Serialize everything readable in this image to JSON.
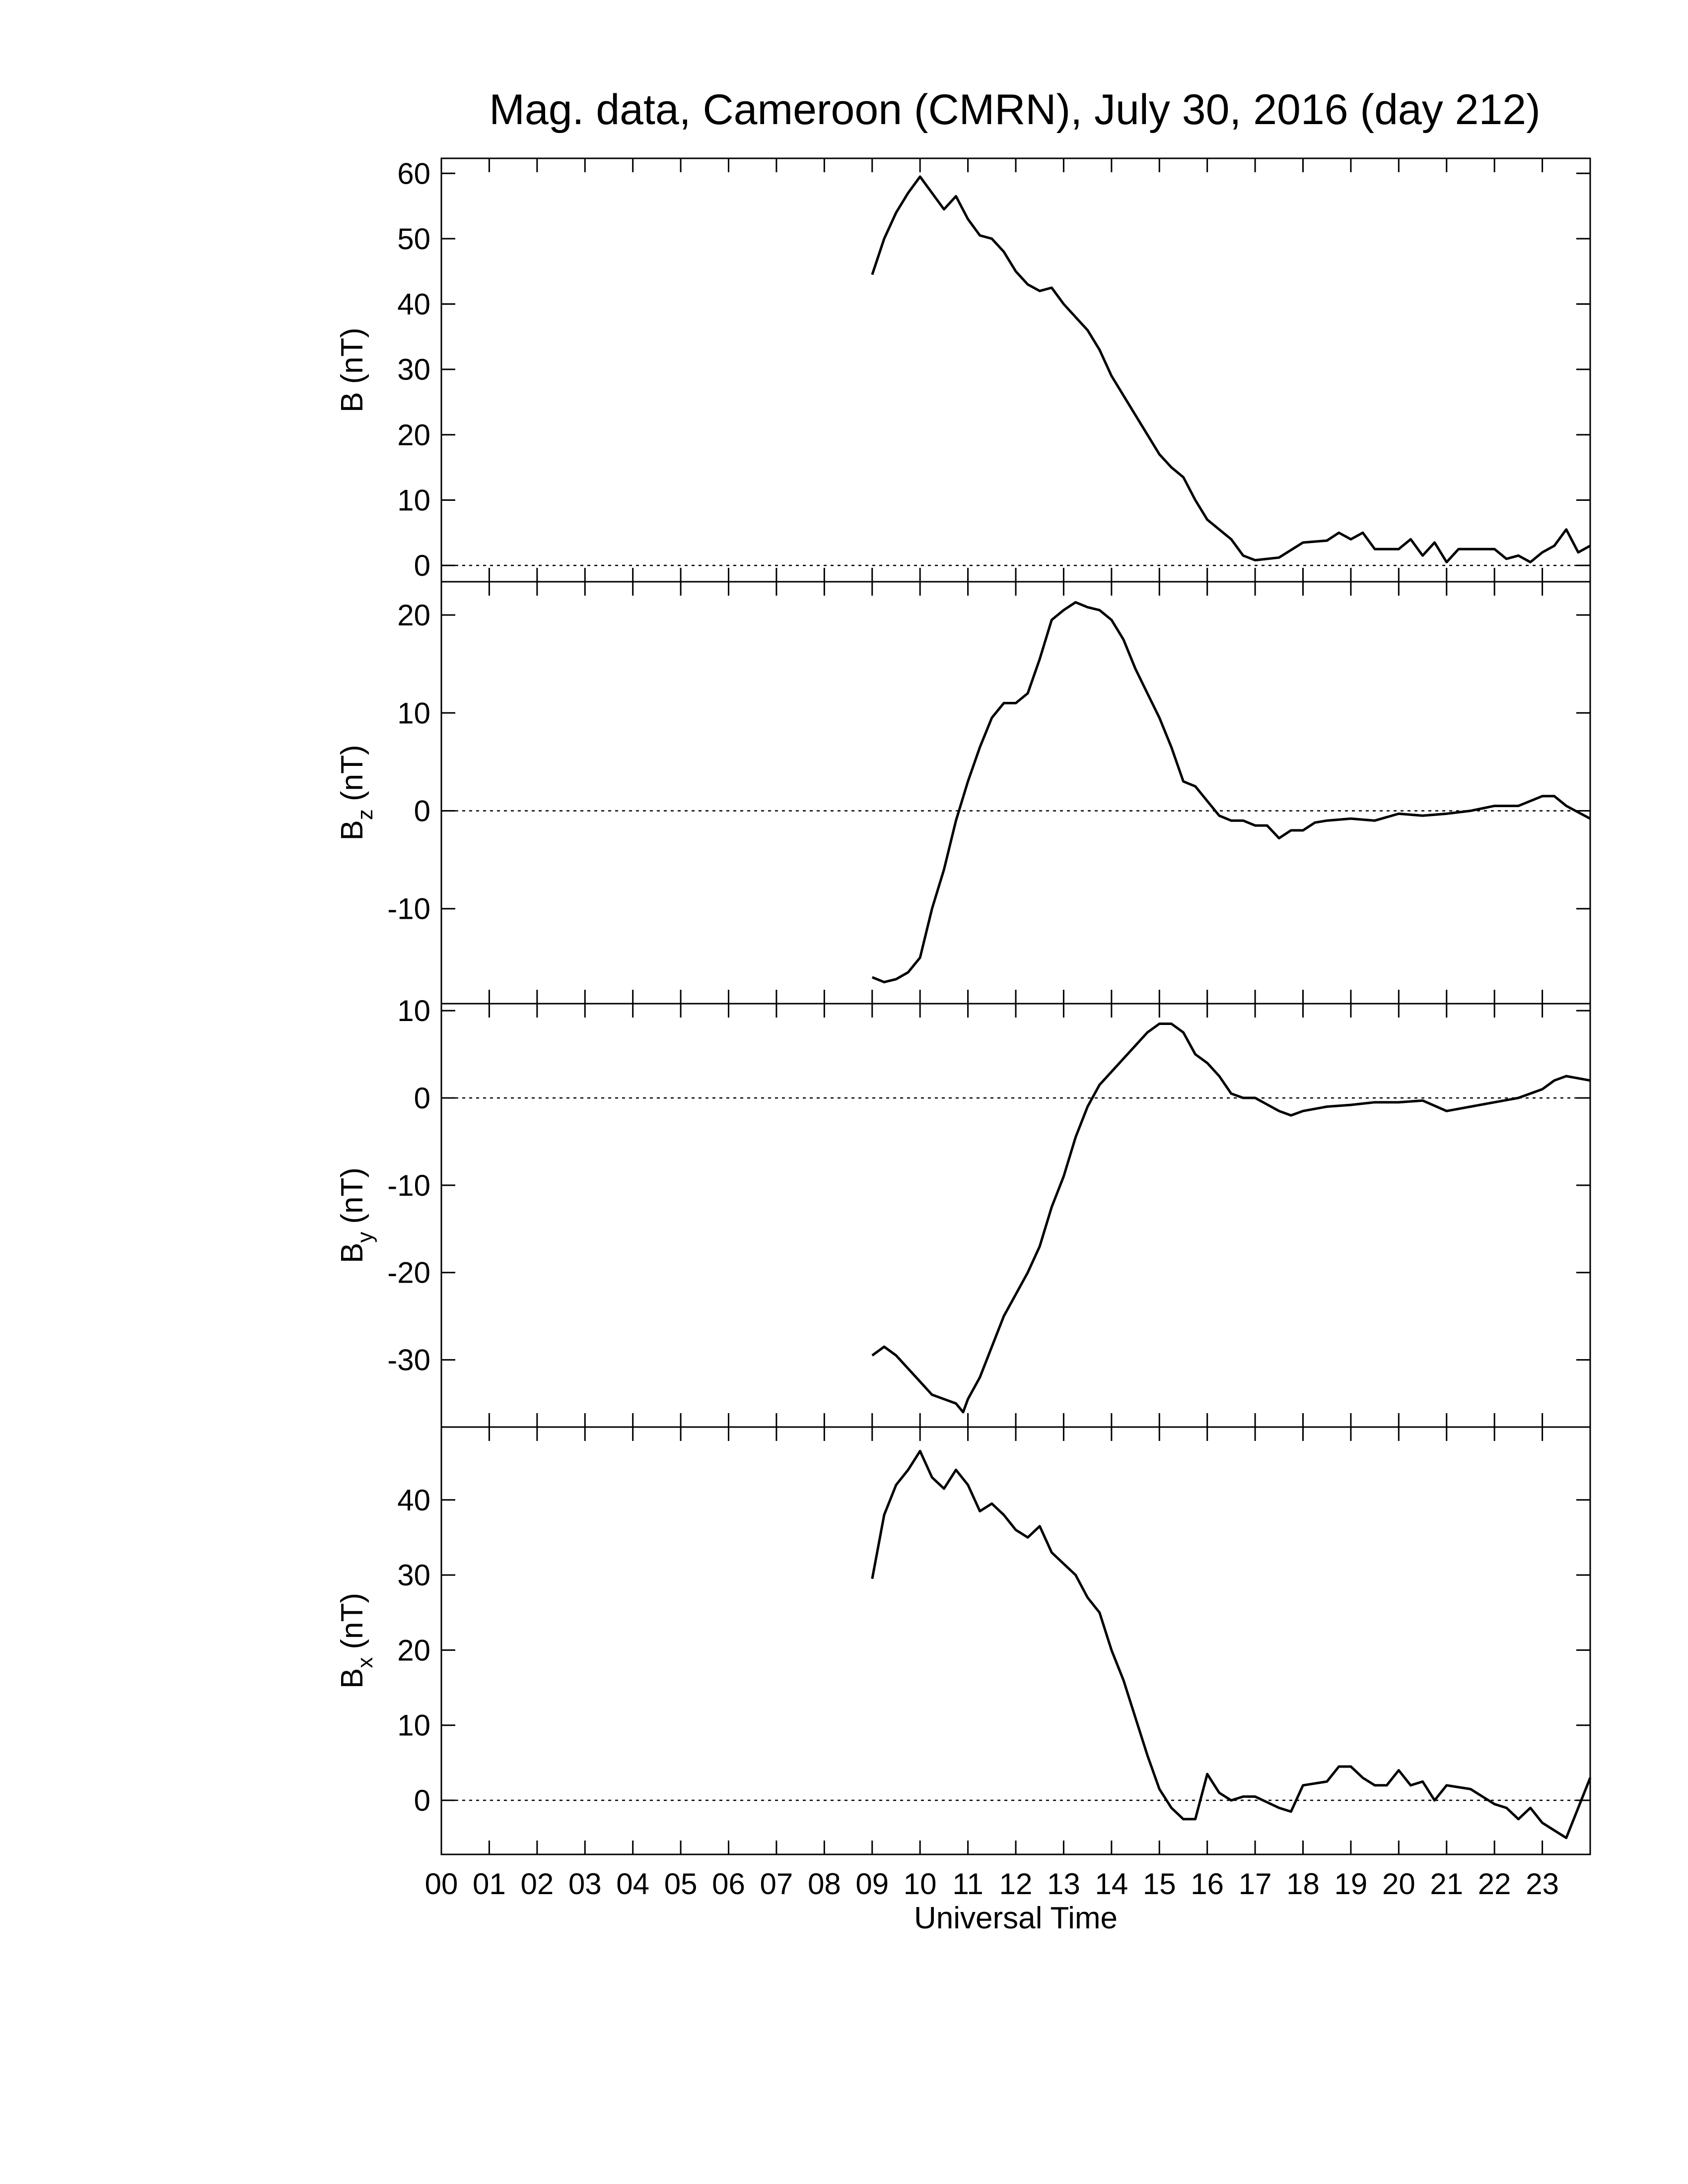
{
  "chart_data": [
    {
      "type": "line",
      "title": "Mag. data, Cameroon (CMRN), July 30, 2016 (day 212)",
      "ylabel": "B",
      "ylabel_unit": "(nT)",
      "color": "#000000",
      "zero_line": true,
      "xlim": [
        0,
        24
      ],
      "ylim": [
        -2.5,
        62.3
      ],
      "yticks": [
        0,
        10,
        20,
        30,
        40,
        50,
        60
      ],
      "x": [
        9.0,
        9.25,
        9.5,
        9.75,
        10.0,
        10.25,
        10.5,
        10.75,
        11.0,
        11.25,
        11.5,
        11.75,
        12.0,
        12.25,
        12.5,
        12.75,
        13.0,
        13.25,
        13.5,
        13.75,
        14.0,
        14.5,
        15.0,
        15.25,
        15.5,
        15.75,
        16.0,
        16.5,
        16.75,
        17.0,
        17.5,
        18.0,
        18.5,
        18.75,
        19.0,
        19.25,
        19.5,
        20.0,
        20.25,
        20.5,
        20.75,
        21.0,
        21.25,
        21.5,
        22.0,
        22.25,
        22.5,
        22.75,
        23.0,
        23.25,
        23.5,
        23.75,
        24.0
      ],
      "values": [
        44.5,
        50,
        54,
        57,
        59.5,
        57,
        54.5,
        56.5,
        53,
        50.5,
        50,
        48,
        45,
        43,
        42,
        42.5,
        40,
        38,
        36,
        33,
        29,
        23,
        17,
        15,
        13.5,
        10,
        7,
        4,
        1.5,
        0.8,
        1.2,
        3.5,
        3.8,
        5,
        4,
        5,
        2.5,
        2.5,
        4,
        1.5,
        3.5,
        0.5,
        2.5,
        2.5,
        2.5,
        1,
        1.5,
        0.5,
        2,
        3,
        5.5,
        2,
        3
      ]
    },
    {
      "type": "line",
      "ylabel": "B",
      "ylabel_sub": "z",
      "ylabel_unit": "(nT)",
      "color": "#000000",
      "zero_line": true,
      "xlim": [
        0,
        24
      ],
      "ylim": [
        -19.7,
        23.4
      ],
      "yticks": [
        -10,
        0,
        10,
        20
      ],
      "x": [
        9.0,
        9.25,
        9.5,
        9.75,
        10.0,
        10.25,
        10.5,
        10.75,
        11.0,
        11.25,
        11.5,
        11.75,
        12.0,
        12.25,
        12.5,
        12.75,
        13.0,
        13.25,
        13.5,
        13.75,
        14.0,
        14.25,
        14.5,
        14.75,
        15.0,
        15.25,
        15.5,
        15.75,
        16.0,
        16.25,
        16.5,
        16.75,
        17.0,
        17.25,
        17.5,
        17.75,
        18.0,
        18.25,
        18.5,
        19.0,
        19.5,
        20.0,
        20.5,
        21.0,
        21.5,
        22.0,
        22.5,
        23.0,
        23.25,
        23.5,
        24.0
      ],
      "values": [
        -17,
        -17.5,
        -17.2,
        -16.5,
        -15,
        -10,
        -6,
        -1,
        3,
        6.5,
        9.5,
        11,
        11,
        12,
        15.5,
        19.5,
        20.5,
        21.3,
        20.8,
        20.5,
        19.5,
        17.5,
        14.5,
        12,
        9.5,
        6.5,
        3,
        2.5,
        1,
        -0.5,
        -1,
        -1,
        -1.5,
        -1.5,
        -2.8,
        -2,
        -2,
        -1.2,
        -1,
        -0.8,
        -1,
        -0.3,
        -0.5,
        -0.3,
        0,
        0.5,
        0.5,
        1.5,
        1.5,
        0.5,
        -0.8
      ]
    },
    {
      "type": "line",
      "ylabel": "B",
      "ylabel_sub": "y",
      "ylabel_unit": "(nT)",
      "color": "#000000",
      "zero_line": true,
      "xlim": [
        0,
        24
      ],
      "ylim": [
        -37.7,
        10.8
      ],
      "yticks": [
        -30,
        -20,
        -10,
        0,
        10
      ],
      "x": [
        9.0,
        9.25,
        9.5,
        9.75,
        10.0,
        10.25,
        10.5,
        10.75,
        10.9,
        11.0,
        11.25,
        11.5,
        11.75,
        12.0,
        12.25,
        12.5,
        12.75,
        13.0,
        13.25,
        13.5,
        13.75,
        14.0,
        14.25,
        14.5,
        14.75,
        15.0,
        15.25,
        15.5,
        15.75,
        16.0,
        16.25,
        16.5,
        16.75,
        17.0,
        17.5,
        17.75,
        18.0,
        18.5,
        19.0,
        19.5,
        20.0,
        20.5,
        21.0,
        21.5,
        22.0,
        22.5,
        23.0,
        23.25,
        23.5,
        24.0
      ],
      "values": [
        -29.5,
        -28.5,
        -29.5,
        -31,
        -32.5,
        -34,
        -34.5,
        -35,
        -36,
        -34.5,
        -32,
        -28.5,
        -25,
        -22.5,
        -20,
        -17,
        -12.5,
        -9,
        -4.5,
        -1,
        1.5,
        3,
        4.5,
        6,
        7.5,
        8.5,
        8.5,
        7.5,
        5,
        4,
        2.5,
        0.5,
        0,
        0,
        -1.5,
        -2,
        -1.5,
        -1,
        -0.8,
        -0.5,
        -0.5,
        -0.3,
        -1.5,
        -1,
        -0.5,
        0,
        1,
        2,
        2.5,
        2
      ]
    },
    {
      "type": "line",
      "ylabel": "B",
      "ylabel_sub": "x",
      "ylabel_unit": "(nT)",
      "color": "#000000",
      "zero_line": true,
      "xlabel": "Universal Time",
      "xlim": [
        0,
        24
      ],
      "ylim": [
        -7.2,
        49.7
      ],
      "yticks": [
        0,
        10,
        20,
        30,
        40
      ],
      "xticks": [
        {
          "value": 0,
          "label": "00"
        },
        {
          "value": 1,
          "label": "01"
        },
        {
          "value": 2,
          "label": "02"
        },
        {
          "value": 3,
          "label": "03"
        },
        {
          "value": 4,
          "label": "04"
        },
        {
          "value": 5,
          "label": "05"
        },
        {
          "value": 6,
          "label": "06"
        },
        {
          "value": 7,
          "label": "07"
        },
        {
          "value": 8,
          "label": "08"
        },
        {
          "value": 9,
          "label": "09"
        },
        10,
        11,
        12,
        13,
        14,
        15,
        16,
        17,
        18,
        19,
        20,
        21,
        22,
        23
      ],
      "x": [
        9.0,
        9.25,
        9.5,
        9.75,
        10.0,
        10.25,
        10.5,
        10.75,
        11.0,
        11.25,
        11.5,
        11.75,
        12.0,
        12.25,
        12.5,
        12.75,
        13.0,
        13.25,
        13.5,
        13.75,
        14.0,
        14.25,
        14.5,
        14.75,
        15.0,
        15.25,
        15.5,
        15.75,
        16.0,
        16.25,
        16.5,
        16.75,
        17.0,
        17.5,
        17.75,
        18.0,
        18.5,
        18.75,
        19.0,
        19.25,
        19.5,
        19.75,
        20.0,
        20.25,
        20.5,
        20.75,
        21.0,
        21.5,
        22.0,
        22.25,
        22.5,
        22.75,
        23.0,
        23.25,
        23.5,
        23.75,
        24.0
      ],
      "values": [
        29.5,
        38,
        42,
        44,
        46.5,
        43,
        41.5,
        44,
        42,
        38.5,
        39.5,
        38,
        36,
        35,
        36.5,
        33,
        31.5,
        30,
        27,
        25,
        20,
        16,
        11,
        6,
        1.5,
        -1,
        -2.5,
        -2.5,
        3.5,
        1,
        0,
        0.5,
        0.5,
        -1,
        -1.5,
        2,
        2.5,
        4.5,
        4.5,
        3,
        2,
        2,
        4,
        2,
        2.5,
        0,
        2,
        1.5,
        -0.5,
        -1,
        -2.5,
        -1,
        -3,
        -4,
        -5,
        -1,
        3
      ]
    }
  ]
}
